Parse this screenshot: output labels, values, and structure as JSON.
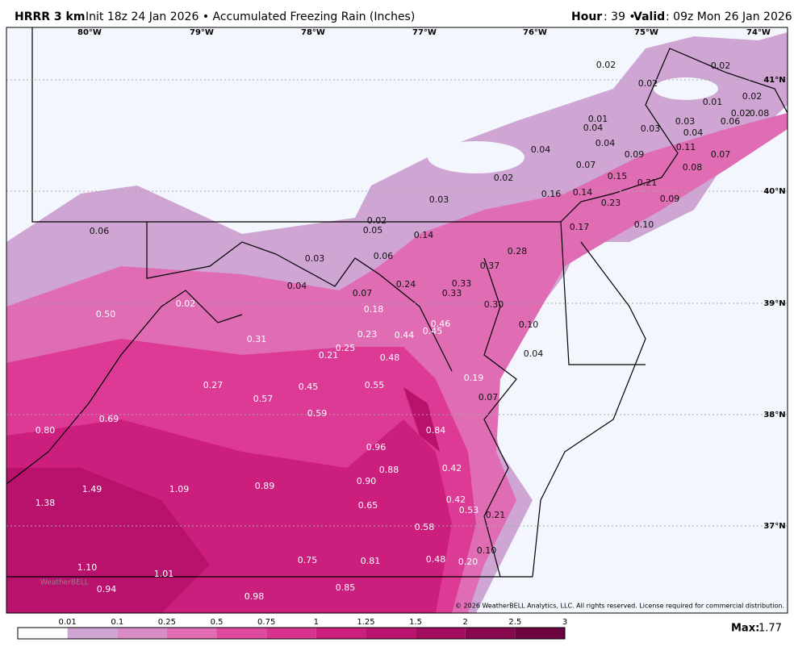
{
  "header": {
    "model": "HRRR 3 km",
    "init_product": "Init 18z 24 Jan 2026 • Accumulated Freezing Rain (Inches)",
    "hour_label": "Hour",
    "hour_text": ": 39 •",
    "valid_label": "Valid",
    "valid_text": ": 09z Mon 26 Jan 2026"
  },
  "map": {
    "longitude_labels": [
      "80°W",
      "79°W",
      "78°W",
      "77°W",
      "76°W",
      "75°W",
      "74°W"
    ],
    "latitude_labels": [
      "41°N",
      "40°N",
      "39°N",
      "38°N",
      "37°N"
    ],
    "point_labels": [
      "0.02",
      "0.02",
      "0.02",
      "0.01",
      "0.02",
      "0.01",
      "0.04",
      "0.03",
      "0.03",
      "0.04",
      "0.06",
      "0.02",
      "0.08",
      "0.04",
      "0.04",
      "0.09",
      "0.11",
      "0.07",
      "0.07",
      "0.15",
      "0.02",
      "0.21",
      "0.08",
      "0.16",
      "0.14",
      "0.03",
      "0.23",
      "0.09",
      "0.10",
      "0.02",
      "0.05",
      "0.14",
      "0.17",
      "0.06",
      "0.28",
      "0.03",
      "0.06",
      "0.37",
      "0.04",
      "0.24",
      "0.33",
      "0.33",
      "0.07",
      "0.02",
      "0.30",
      "0.18",
      "0.50",
      "0.46",
      "0.45",
      "0.10",
      "0.44",
      "0.23",
      "0.31",
      "0.25",
      "0.21",
      "0.48",
      "0.04",
      "0.19",
      "0.27",
      "0.45",
      "0.55",
      "0.07",
      "0.57",
      "0.59",
      "0.69",
      "0.80",
      "0.84",
      "0.96",
      "0.88",
      "0.42",
      "0.90",
      "1.49",
      "1.09",
      "0.89",
      "1.38",
      "0.65",
      "0.42",
      "0.53",
      "0.21",
      "0.58",
      "0.10",
      "0.75",
      "0.81",
      "0.48",
      "0.20",
      "1.10",
      "1.01",
      "0.94",
      "0.85",
      "0.98"
    ],
    "logo": "WeatherBELL",
    "copyright": "© 2026 WeatherBELL Analytics, LLC. All rights reserved. License required for commercial distribution."
  },
  "colorbar": {
    "levels": [
      "0.01",
      "0.1",
      "0.25",
      "0.5",
      "0.75",
      "1",
      "1.25",
      "1.5",
      "2",
      "2.5",
      "3"
    ],
    "colors": [
      "#ffffff",
      "#cfa5d3",
      "#d98cc6",
      "#e06cb4",
      "#df4a9f",
      "#d8338c",
      "#cc1f7c",
      "#b9136d",
      "#a20c5e",
      "#880850",
      "#6c0440"
    ]
  },
  "max": {
    "label": "Max:",
    "value": "1.77"
  }
}
